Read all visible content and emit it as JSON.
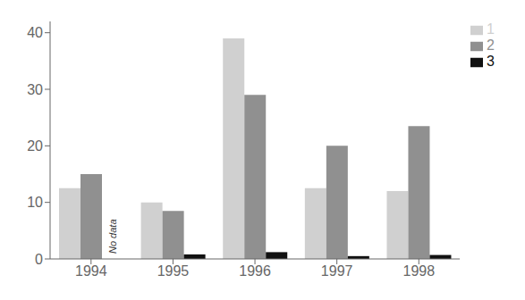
{
  "chart_data": {
    "type": "bar",
    "categories": [
      "1994",
      "1995",
      "1996",
      "1997",
      "1998"
    ],
    "series": [
      {
        "name": "1",
        "color": "#d0d0d0",
        "values": [
          12.5,
          10.0,
          39.0,
          12.5,
          12.0
        ]
      },
      {
        "name": "2",
        "color": "#909090",
        "values": [
          15.0,
          8.5,
          29.0,
          20.0,
          23.5
        ]
      },
      {
        "name": "3",
        "color": "#111111",
        "values": [
          null,
          0.8,
          1.2,
          0.5,
          0.7
        ]
      }
    ],
    "ylim": [
      0,
      42
    ],
    "yticks": [
      0,
      10,
      20,
      30,
      40
    ],
    "legend": "upper right",
    "annotations": [
      {
        "text": "No data",
        "category": "1994",
        "series": "3"
      }
    ]
  }
}
